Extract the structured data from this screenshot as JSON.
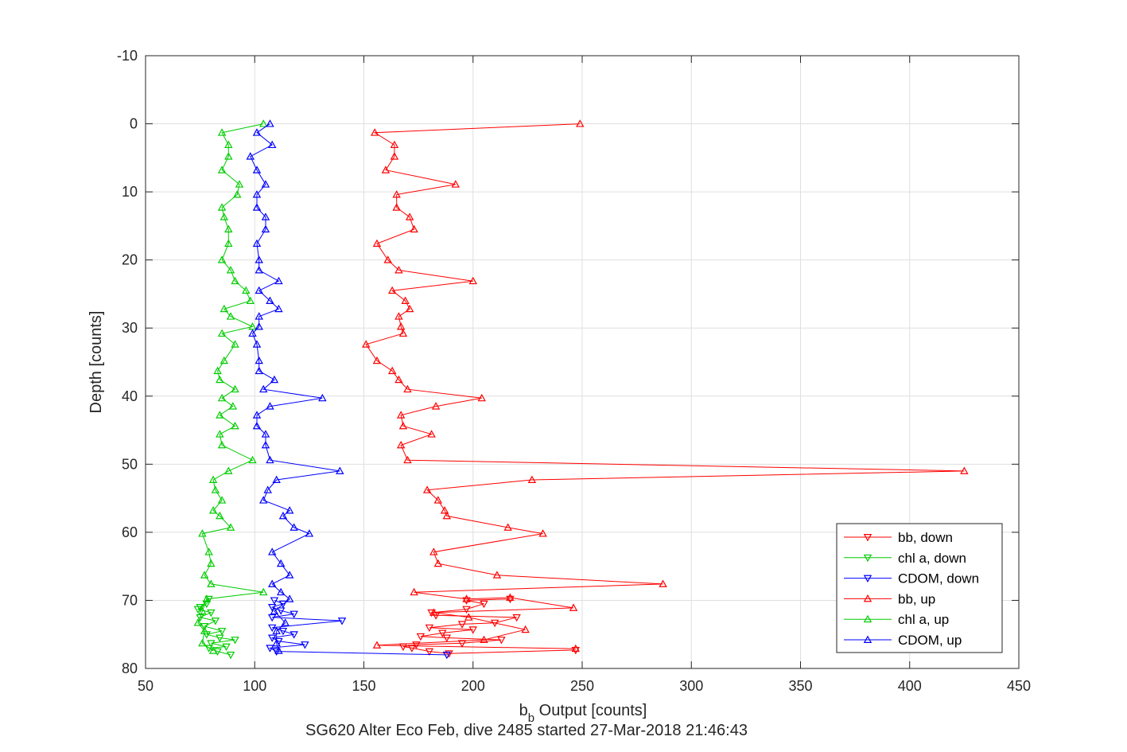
{
  "chart_data": {
    "type": "line",
    "title": "",
    "xlabel_main": "b",
    "xlabel_sub": "b",
    "xlabel_rest": " Output [counts]",
    "ylabel": "Depth [counts]",
    "subtitle": "SG620 Alter Eco Feb, dive 2485 started 27-Mar-2018 21:46:43",
    "xlim": [
      50,
      450
    ],
    "ylim": [
      -10,
      80
    ],
    "y_reversed": true,
    "xticks": [
      50,
      100,
      150,
      200,
      250,
      300,
      350,
      400,
      450
    ],
    "yticks": [
      -10,
      0,
      10,
      20,
      30,
      40,
      50,
      60,
      70,
      80
    ],
    "grid": true,
    "legend_position": "bottom-right",
    "series": [
      {
        "name": "bb, down",
        "color": "#ff0000",
        "marker": "triangle-down",
        "points": [
          [
            247,
            77.3
          ],
          [
            189,
            77.8
          ],
          [
            180,
            77.5
          ],
          [
            172,
            77.0
          ],
          [
            168,
            76.8
          ],
          [
            174,
            76.5
          ],
          [
            195,
            76.3
          ],
          [
            213,
            75.8
          ],
          [
            188,
            75.5
          ],
          [
            176,
            75.3
          ],
          [
            186,
            74.8
          ],
          [
            200,
            74.3
          ],
          [
            180,
            74.0
          ],
          [
            195,
            73.5
          ],
          [
            210,
            73.3
          ],
          [
            220,
            72.5
          ],
          [
            183,
            72.2
          ],
          [
            181,
            71.8
          ],
          [
            197,
            71.3
          ],
          [
            205,
            70.5
          ],
          [
            197,
            70.0
          ],
          [
            217,
            69.8
          ]
        ]
      },
      {
        "name": "chl a, down",
        "color": "#00cc00",
        "marker": "triangle-down",
        "points": [
          [
            89,
            78.0
          ],
          [
            83,
            77.5
          ],
          [
            79,
            77.0
          ],
          [
            87,
            76.8
          ],
          [
            80,
            76.3
          ],
          [
            91,
            75.8
          ],
          [
            84,
            75.5
          ],
          [
            78,
            75.0
          ],
          [
            85,
            74.5
          ],
          [
            77,
            73.8
          ],
          [
            82,
            73.0
          ],
          [
            75,
            72.5
          ],
          [
            80,
            71.8
          ],
          [
            74,
            71.3
          ],
          [
            78,
            70.5
          ],
          [
            79,
            69.8
          ],
          [
            75,
            71.0
          ]
        ]
      },
      {
        "name": "CDOM, down",
        "color": "#0000ff",
        "marker": "triangle-down",
        "points": [
          [
            188,
            78.0
          ],
          [
            110,
            77.5
          ],
          [
            107,
            77.0
          ],
          [
            123,
            76.5
          ],
          [
            111,
            76.0
          ],
          [
            108,
            75.5
          ],
          [
            118,
            75.0
          ],
          [
            113,
            74.5
          ],
          [
            108,
            74.0
          ],
          [
            140,
            73.0
          ],
          [
            108,
            72.5
          ],
          [
            118,
            72.0
          ],
          [
            112,
            71.5
          ],
          [
            108,
            71.0
          ],
          [
            113,
            70.5
          ],
          [
            109,
            70.0
          ]
        ]
      },
      {
        "name": "bb, up",
        "color": "#ff0000",
        "marker": "triangle-up",
        "points": [
          [
            249,
            0
          ],
          [
            155,
            1.3
          ],
          [
            164,
            3.1
          ],
          [
            164,
            4.8
          ],
          [
            160,
            6.8
          ],
          [
            192,
            8.9
          ],
          [
            165,
            10.4
          ],
          [
            165,
            12.3
          ],
          [
            171,
            13.7
          ],
          [
            173,
            15.5
          ],
          [
            156,
            17.6
          ],
          [
            161,
            20.0
          ],
          [
            166,
            21.5
          ],
          [
            200,
            23.1
          ],
          [
            163,
            24.5
          ],
          [
            169,
            26.0
          ],
          [
            171,
            27.2
          ],
          [
            166,
            28.3
          ],
          [
            167,
            29.8
          ],
          [
            168,
            30.8
          ],
          [
            151,
            32.4
          ],
          [
            156,
            34.8
          ],
          [
            163,
            36.3
          ],
          [
            166,
            37.6
          ],
          [
            170,
            39.0
          ],
          [
            204,
            40.3
          ],
          [
            183,
            41.5
          ],
          [
            167,
            42.8
          ],
          [
            168,
            44.4
          ],
          [
            181,
            45.6
          ],
          [
            167,
            47.2
          ],
          [
            170,
            49.4
          ],
          [
            425,
            51.0
          ],
          [
            227,
            52.3
          ],
          [
            179,
            53.8
          ],
          [
            184,
            55.3
          ],
          [
            187,
            56.8
          ],
          [
            188,
            57.6
          ],
          [
            216,
            59.3
          ],
          [
            232,
            60.2
          ],
          [
            182,
            62.9
          ],
          [
            184,
            64.6
          ],
          [
            211,
            66.3
          ],
          [
            287,
            67.6
          ],
          [
            173,
            68.8
          ],
          [
            197,
            69.8
          ],
          [
            217,
            69.6
          ],
          [
            246,
            71.1
          ],
          [
            182,
            71.8
          ],
          [
            198,
            72.5
          ],
          [
            224,
            74.3
          ],
          [
            205,
            75.8
          ],
          [
            156,
            76.6
          ],
          [
            247,
            77.1
          ]
        ]
      },
      {
        "name": "chl a, up",
        "color": "#00cc00",
        "marker": "triangle-up",
        "points": [
          [
            104,
            0
          ],
          [
            85,
            1.3
          ],
          [
            88,
            3.1
          ],
          [
            88,
            4.8
          ],
          [
            85,
            6.8
          ],
          [
            93,
            8.9
          ],
          [
            92,
            10.4
          ],
          [
            85,
            12.3
          ],
          [
            86,
            13.7
          ],
          [
            88,
            15.5
          ],
          [
            88,
            17.6
          ],
          [
            85,
            20.0
          ],
          [
            89,
            21.5
          ],
          [
            91,
            23.1
          ],
          [
            96,
            24.5
          ],
          [
            98,
            26.0
          ],
          [
            86,
            27.2
          ],
          [
            89,
            28.3
          ],
          [
            99,
            29.8
          ],
          [
            85,
            30.8
          ],
          [
            91,
            32.4
          ],
          [
            86,
            34.8
          ],
          [
            83,
            36.3
          ],
          [
            84,
            37.6
          ],
          [
            91,
            39.0
          ],
          [
            85,
            40.3
          ],
          [
            90,
            41.5
          ],
          [
            84,
            42.8
          ],
          [
            91,
            44.4
          ],
          [
            84,
            45.6
          ],
          [
            85,
            47.2
          ],
          [
            99,
            49.4
          ],
          [
            88,
            51.0
          ],
          [
            81,
            52.3
          ],
          [
            82,
            53.8
          ],
          [
            85,
            55.3
          ],
          [
            81,
            56.8
          ],
          [
            84,
            57.6
          ],
          [
            89,
            59.3
          ],
          [
            76,
            60.2
          ],
          [
            79,
            62.9
          ],
          [
            80,
            64.6
          ],
          [
            77,
            66.3
          ],
          [
            80,
            67.6
          ],
          [
            104,
            68.8
          ],
          [
            78,
            69.8
          ],
          [
            76,
            71.6
          ],
          [
            74,
            73.3
          ],
          [
            77,
            74.5
          ],
          [
            76,
            76.3
          ],
          [
            81,
            77.4
          ]
        ]
      },
      {
        "name": "CDOM, up",
        "color": "#0000ff",
        "marker": "triangle-up",
        "points": [
          [
            107,
            0
          ],
          [
            101,
            1.3
          ],
          [
            108,
            3.1
          ],
          [
            98,
            4.8
          ],
          [
            101,
            6.8
          ],
          [
            105,
            8.9
          ],
          [
            101,
            10.4
          ],
          [
            101,
            12.3
          ],
          [
            105,
            13.7
          ],
          [
            105,
            15.5
          ],
          [
            101,
            17.6
          ],
          [
            102,
            20.0
          ],
          [
            102,
            21.5
          ],
          [
            111,
            23.1
          ],
          [
            102,
            24.5
          ],
          [
            107,
            26.0
          ],
          [
            111,
            27.2
          ],
          [
            102,
            28.3
          ],
          [
            102,
            29.8
          ],
          [
            99,
            30.8
          ],
          [
            101,
            32.4
          ],
          [
            102,
            34.8
          ],
          [
            102,
            36.3
          ],
          [
            109,
            37.6
          ],
          [
            104,
            39.0
          ],
          [
            131,
            40.3
          ],
          [
            107,
            41.5
          ],
          [
            101,
            42.8
          ],
          [
            101,
            44.4
          ],
          [
            105,
            45.6
          ],
          [
            105,
            47.2
          ],
          [
            107,
            49.4
          ],
          [
            139,
            51.0
          ],
          [
            110,
            52.3
          ],
          [
            106,
            53.8
          ],
          [
            104,
            55.3
          ],
          [
            116,
            56.8
          ],
          [
            113,
            57.6
          ],
          [
            118,
            59.3
          ],
          [
            125,
            60.2
          ],
          [
            108,
            62.9
          ],
          [
            112,
            64.6
          ],
          [
            116,
            66.3
          ],
          [
            108,
            67.6
          ],
          [
            112,
            68.8
          ],
          [
            116,
            69.8
          ],
          [
            109,
            71.6
          ],
          [
            114,
            73.3
          ],
          [
            110,
            74.5
          ],
          [
            110,
            76.3
          ],
          [
            111,
            77.4
          ]
        ]
      }
    ]
  }
}
